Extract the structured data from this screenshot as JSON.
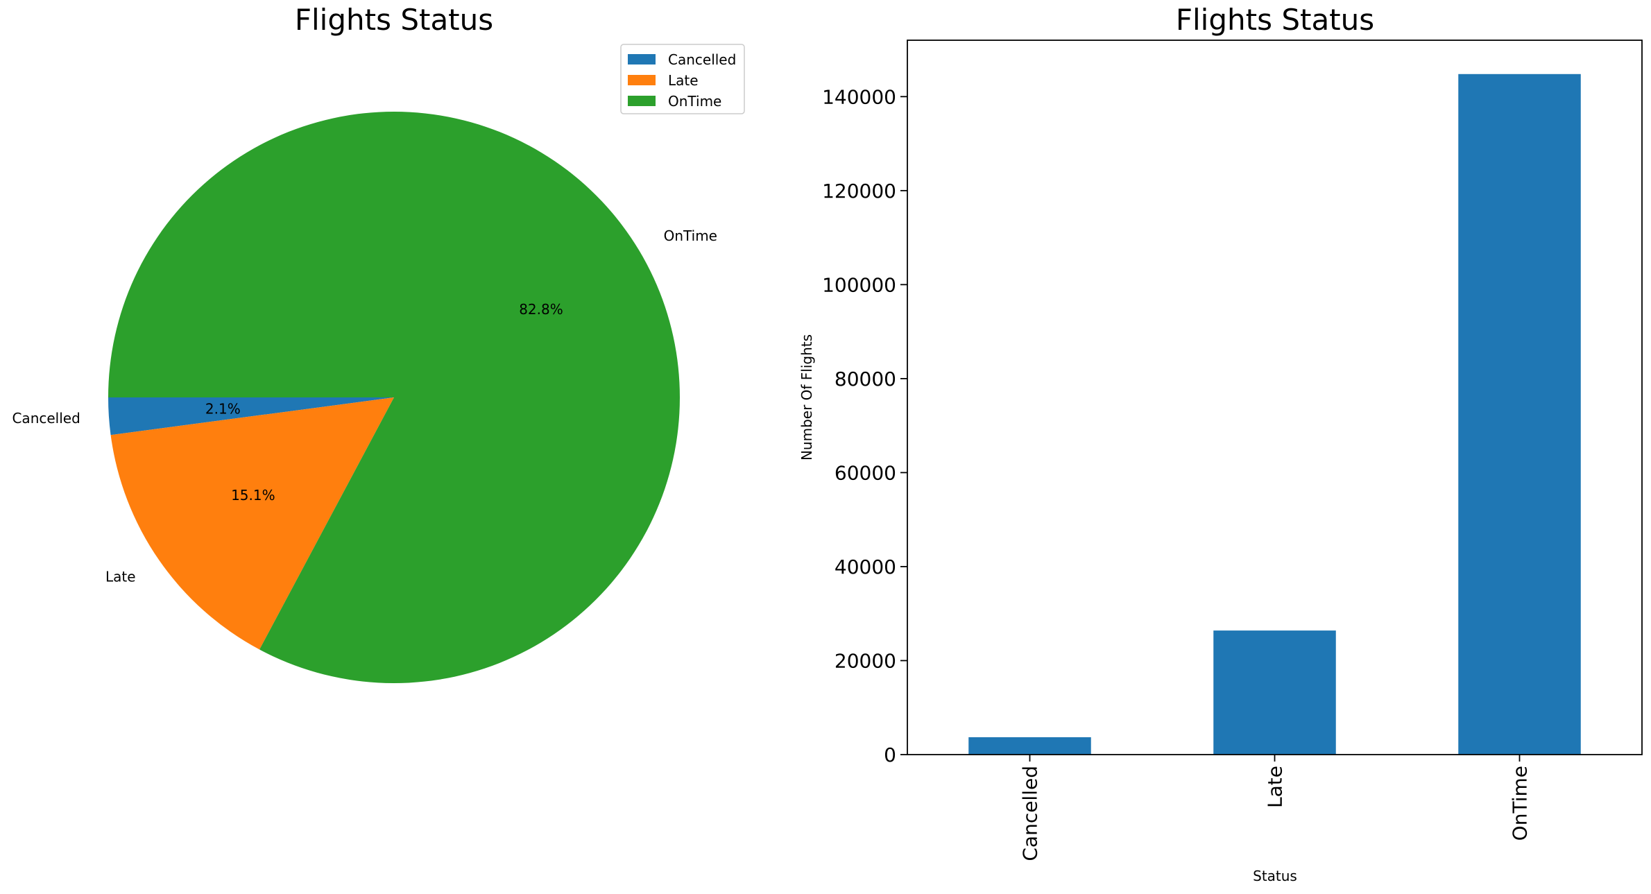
{
  "colors": {
    "cancelled": "#1f77b4",
    "late": "#ff7f0e",
    "ontime": "#2ca02c",
    "bar": "#1f77b4"
  },
  "chart_data": [
    {
      "type": "pie",
      "title": "Flights Status",
      "categories": [
        "Cancelled",
        "Late",
        "OnTime"
      ],
      "values": [
        2.1,
        15.1,
        82.8
      ],
      "value_labels": [
        "2.1%",
        "15.1%",
        "82.8%"
      ],
      "legend": {
        "placement": "top-right",
        "entries": [
          "Cancelled",
          "Late",
          "OnTime"
        ]
      }
    },
    {
      "type": "bar",
      "title": "Flights Status",
      "xlabel": "Status",
      "ylabel": "Number Of Flights",
      "categories": [
        "Cancelled",
        "Late",
        "OnTime"
      ],
      "values": [
        3700,
        26400,
        144800
      ],
      "ylim": [
        0,
        152000
      ],
      "yticks": [
        0,
        20000,
        40000,
        60000,
        80000,
        100000,
        120000,
        140000
      ],
      "ytick_labels": [
        "0",
        "20000",
        "40000",
        "60000",
        "80000",
        "100000",
        "120000",
        "140000"
      ],
      "grid": false
    }
  ]
}
